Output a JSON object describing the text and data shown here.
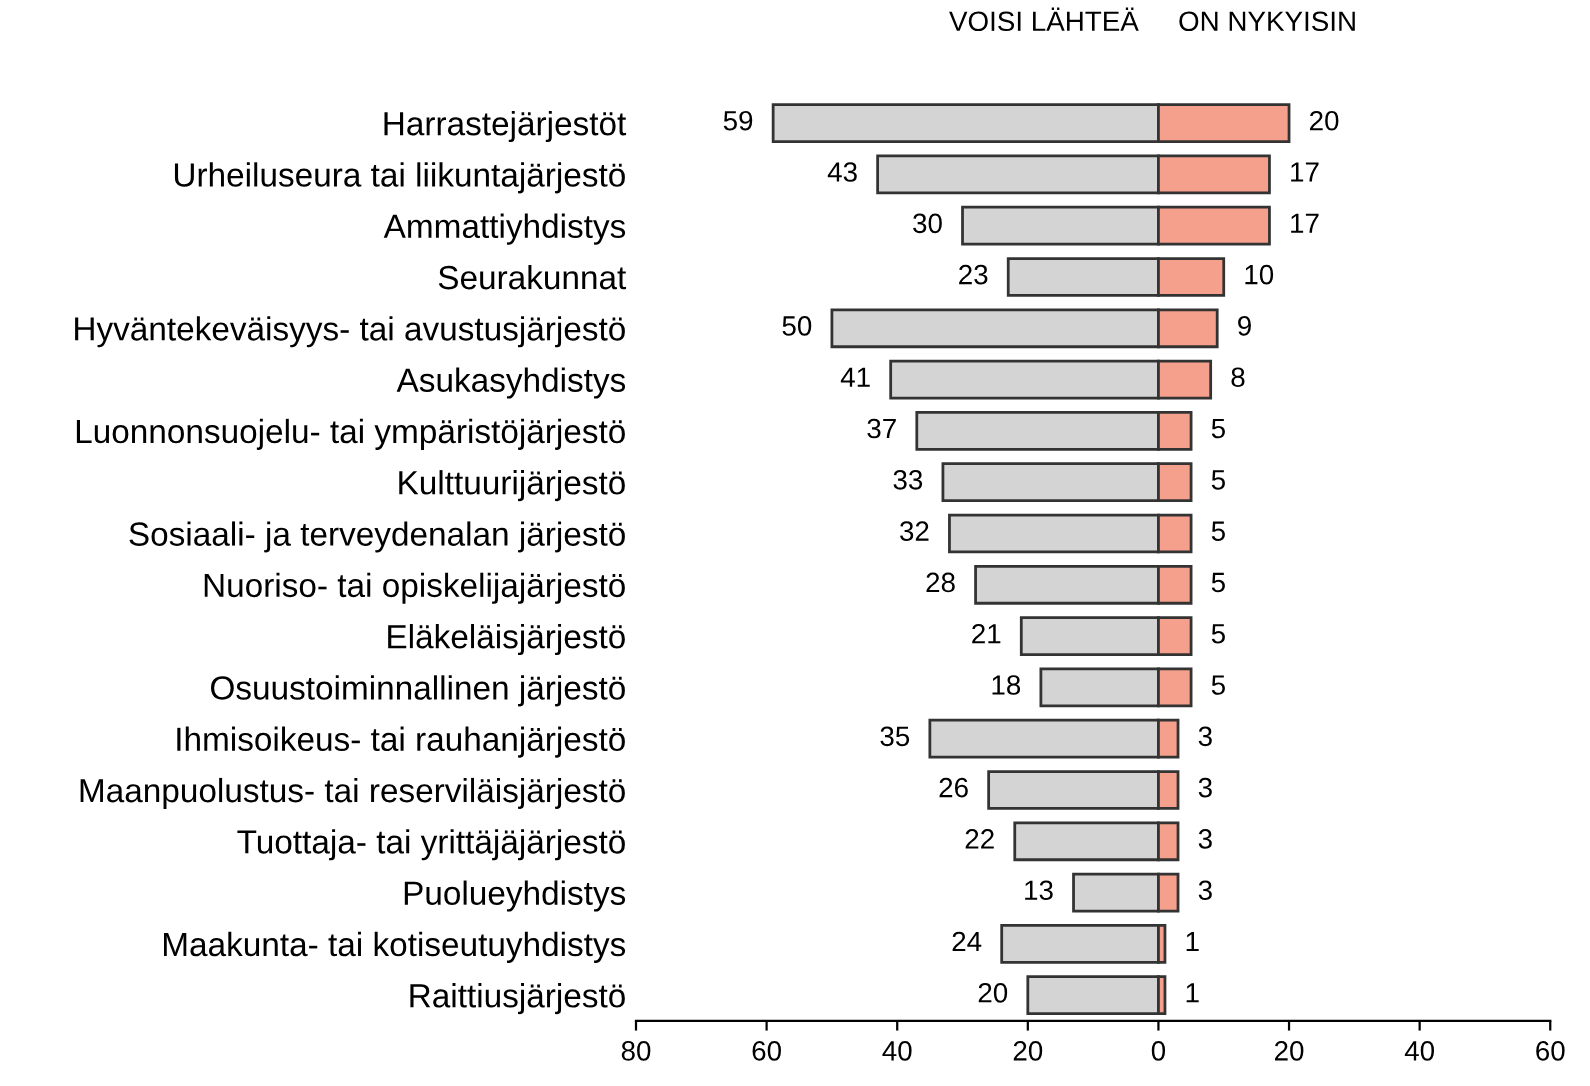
{
  "chart_data": {
    "type": "bar",
    "orientation": "horizontal",
    "categories": [
      "Harrastejärjestöt",
      "Urheiluseura tai liikuntajärjestö",
      "Ammattiyhdistys",
      "Seurakunnat",
      "Hyväntekeväisyys- tai avustusjärjestö",
      "Asukasyhdistys",
      "Luonnonsuojelu- tai ympäristöjärjestö",
      "Kulttuurijärjestö",
      "Sosiaali- ja terveydenalan järjestö",
      "Nuoriso- tai opiskelijajärjestö",
      "Eläkeläisjärjestö",
      "Osuustoiminnallinen järjestö",
      "Ihmisoikeus- tai rauhanjärjestö",
      "Maanpuolustus- tai reserviläisjärjestö",
      "Tuottaja- tai yrittäjäjärjestö",
      "Puolueyhdistys",
      "Maakunta- tai kotiseutuyhdistys",
      "Raittiusjärjestö"
    ],
    "series": [
      {
        "name": "VOISI LÄHTEÄ",
        "color": "#d4d4d4",
        "values": [
          59,
          43,
          30,
          23,
          50,
          41,
          37,
          33,
          32,
          28,
          21,
          18,
          35,
          26,
          22,
          13,
          24,
          20
        ],
        "base": [
          -59,
          -43,
          -30,
          -23,
          -50,
          -41,
          -37,
          -33,
          -32,
          -28,
          -21,
          -18,
          -35,
          -26,
          -22,
          -13,
          -24,
          -20
        ]
      },
      {
        "name": "ON NYKYISIN",
        "color": "#f4a08c",
        "values": [
          20,
          17,
          17,
          10,
          9,
          8,
          5,
          5,
          5,
          5,
          5,
          5,
          3,
          3,
          3,
          3,
          1,
          1
        ]
      }
    ],
    "xlim": [
      -80,
      60
    ],
    "xticks": [
      {
        "value": -80,
        "label": "80"
      },
      {
        "value": -60,
        "label": "60"
      },
      {
        "value": -40,
        "label": "40"
      },
      {
        "value": -20,
        "label": "20"
      },
      0,
      20,
      40,
      60
    ],
    "grid": false,
    "legend": false,
    "data_labels": true
  }
}
